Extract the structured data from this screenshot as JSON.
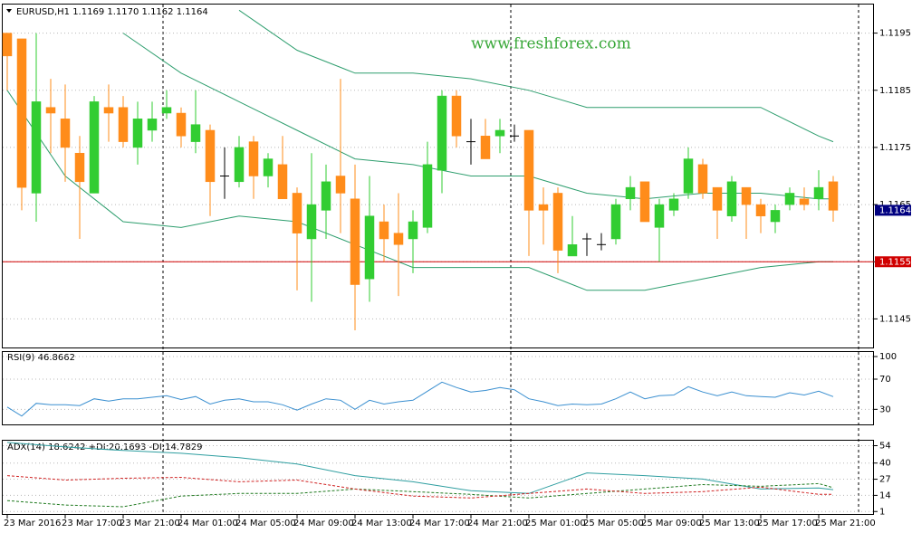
{
  "chart_data": [
    {
      "type": "candlestick",
      "header": "EURUSD,H1  1.1169 1.1170 1.1162 1.1164",
      "watermark": "www.freshforex.com",
      "categories": [
        "23 Mar 2016",
        null,
        null,
        null,
        "23 Mar 17:00",
        null,
        null,
        null,
        "23 Mar 21:00",
        null,
        null,
        null,
        "24 Mar 01:00",
        null,
        null,
        null,
        "24 Mar 05:00",
        null,
        null,
        null,
        "24 Mar 09:00",
        null,
        null,
        null,
        "24 Mar 13:00",
        null,
        null,
        null,
        "24 Mar 17:00",
        null,
        null,
        null,
        "24 Mar 21:00",
        null,
        null,
        null,
        "25 Mar 01:00",
        null,
        null,
        null,
        "25 Mar 05:00",
        null,
        null,
        null,
        "25 Mar 09:00",
        null,
        null,
        null,
        "25 Mar 13:00",
        null,
        null,
        null,
        "25 Mar 17:00",
        null,
        null,
        null,
        "25 Mar 21:00",
        null
      ],
      "ohlc": [
        [
          1.1195,
          1.1195,
          1.1185,
          1.1191
        ],
        [
          1.1194,
          1.1194,
          1.1164,
          1.1168
        ],
        [
          1.1167,
          1.1195,
          1.1162,
          1.1183
        ],
        [
          1.1182,
          1.1187,
          1.1174,
          1.1181
        ],
        [
          1.118,
          1.1186,
          1.1169,
          1.1175
        ],
        [
          1.1174,
          1.1177,
          1.1159,
          1.1169
        ],
        [
          1.1167,
          1.1184,
          1.1167,
          1.1183
        ],
        [
          1.1182,
          1.1186,
          1.1176,
          1.1181
        ],
        [
          1.1182,
          1.1184,
          1.1175,
          1.1176
        ],
        [
          1.1175,
          1.1183,
          1.1172,
          1.118
        ],
        [
          1.1178,
          1.1183,
          1.1176,
          1.118
        ],
        [
          1.1181,
          1.1185,
          1.118,
          1.1182
        ],
        [
          1.1181,
          1.1182,
          1.1175,
          1.1177
        ],
        [
          1.1176,
          1.1185,
          1.1174,
          1.1179
        ],
        [
          1.1178,
          1.1179,
          1.1163,
          1.1169
        ],
        [
          1.117,
          1.1175,
          1.1166,
          1.117
        ],
        [
          1.1169,
          1.1177,
          1.1168,
          1.1175
        ],
        [
          1.1176,
          1.1177,
          1.1166,
          1.117
        ],
        [
          1.117,
          1.1174,
          1.1168,
          1.1173
        ],
        [
          1.1172,
          1.1177,
          1.1166,
          1.1166
        ],
        [
          1.1167,
          1.1168,
          1.115,
          1.116
        ],
        [
          1.1159,
          1.1174,
          1.1148,
          1.1165
        ],
        [
          1.1164,
          1.1172,
          1.1159,
          1.1169
        ],
        [
          1.117,
          1.1187,
          1.116,
          1.1167
        ],
        [
          1.1166,
          1.1172,
          1.1143,
          1.1151
        ],
        [
          1.1152,
          1.117,
          1.1148,
          1.1163
        ],
        [
          1.1162,
          1.1165,
          1.1155,
          1.1159
        ],
        [
          1.116,
          1.1167,
          1.1149,
          1.1158
        ],
        [
          1.1159,
          1.1164,
          1.1153,
          1.1162
        ],
        [
          1.1161,
          1.1176,
          1.116,
          1.1172
        ],
        [
          1.1171,
          1.1185,
          1.1167,
          1.1184
        ],
        [
          1.1184,
          1.1185,
          1.1175,
          1.1177
        ],
        [
          1.1176,
          1.118,
          1.1172,
          1.1176
        ],
        [
          1.1177,
          1.118,
          1.1173,
          1.1173
        ],
        [
          1.1177,
          1.118,
          1.1174,
          1.1178
        ],
        [
          1.1177,
          1.1179,
          1.1176,
          1.1177
        ],
        [
          1.1178,
          1.1178,
          1.1156,
          1.1164
        ],
        [
          1.1165,
          1.1168,
          1.1158,
          1.1164
        ],
        [
          1.1167,
          1.1168,
          1.1153,
          1.1157
        ],
        [
          1.1156,
          1.1163,
          1.1156,
          1.1158
        ],
        [
          1.1159,
          1.116,
          1.1156,
          1.1159
        ],
        [
          1.1158,
          1.116,
          1.1157,
          1.1158
        ],
        [
          1.1159,
          1.1166,
          1.1158,
          1.1165
        ],
        [
          1.1166,
          1.117,
          1.1164,
          1.1168
        ],
        [
          1.1169,
          1.1169,
          1.1162,
          1.1162
        ],
        [
          1.1161,
          1.1166,
          1.1155,
          1.1165
        ],
        [
          1.1164,
          1.1167,
          1.1163,
          1.1166
        ],
        [
          1.1167,
          1.1175,
          1.1166,
          1.1173
        ],
        [
          1.1172,
          1.1173,
          1.1166,
          1.1167
        ],
        [
          1.1168,
          1.1168,
          1.1159,
          1.1164
        ],
        [
          1.1163,
          1.117,
          1.1162,
          1.1169
        ],
        [
          1.1168,
          1.1168,
          1.1159,
          1.1165
        ],
        [
          1.1165,
          1.1166,
          1.116,
          1.1163
        ],
        [
          1.1162,
          1.1165,
          1.116,
          1.1164
        ],
        [
          1.1165,
          1.1168,
          1.1164,
          1.1167
        ],
        [
          1.1166,
          1.1168,
          1.1164,
          1.1165
        ],
        [
          1.1166,
          1.1171,
          1.1164,
          1.1168
        ],
        [
          1.1169,
          1.117,
          1.1162,
          1.1164
        ]
      ],
      "up_color": "#32cd32",
      "down_color": "#ff8c1a",
      "doji_color": "#000000",
      "bands": {
        "color": "#2e9e6e",
        "x": [
          0,
          4,
          8,
          12,
          16,
          20,
          24,
          28,
          32,
          36,
          40,
          44,
          48,
          52,
          56,
          57
        ],
        "upper": [
          null,
          null,
          null,
          null,
          1.1199,
          1.1192,
          1.1188,
          1.1188,
          1.1187,
          1.1185,
          1.1182,
          1.1182,
          1.1182,
          1.1182,
          1.1177,
          1.1176
        ],
        "middle": [
          null,
          null,
          1.1195,
          1.1188,
          1.1183,
          1.1178,
          1.1173,
          1.1172,
          1.117,
          1.117,
          1.1167,
          1.1166,
          1.1167,
          1.1167,
          1.1166,
          1.1166
        ],
        "lower": [
          1.1185,
          1.117,
          1.1162,
          1.1161,
          1.1163,
          1.1162,
          1.1158,
          1.1154,
          1.1154,
          1.1154,
          1.115,
          1.115,
          1.1152,
          1.1154,
          1.1155,
          1.1155
        ]
      },
      "hline": {
        "value": 1.1155,
        "color": "#d00000"
      },
      "current_color": "#000080",
      "ylim": [
        1.114,
        1.12
      ],
      "yticks": [
        1.1145,
        1.1155,
        1.1165,
        1.1175,
        1.1185,
        1.1195
      ],
      "grid": true
    },
    {
      "type": "line",
      "title": "RSI(9) 46.8662",
      "series": [
        {
          "color": "#3a8fd0",
          "dash": false,
          "values": [
            33,
            21,
            38,
            36,
            36,
            35,
            44,
            41,
            44,
            44,
            46,
            48,
            43,
            47,
            37,
            42,
            44,
            40,
            40,
            36,
            29,
            37,
            44,
            42,
            30,
            42,
            37,
            40,
            42,
            54,
            66,
            59,
            53,
            55,
            59,
            56,
            44,
            40,
            35,
            37,
            36,
            37,
            44,
            53,
            44,
            48,
            49,
            60,
            53,
            48,
            53,
            48,
            47,
            46,
            52,
            49,
            54,
            46.8662
          ]
        }
      ],
      "ylim": [
        10,
        106
      ],
      "yticks": [
        30,
        70,
        100
      ],
      "grid": true
    },
    {
      "type": "line",
      "title": "ADX(14) 18.6242 +DI:20.1693 -DI:14.7829",
      "x": [
        0,
        4,
        8,
        12,
        16,
        20,
        24,
        28,
        32,
        36,
        40,
        44,
        48,
        52,
        56,
        57
      ],
      "series": [
        {
          "color": "#2e9ea0",
          "dash": false,
          "values": [
            56.6,
            53.0,
            50.1,
            47.9,
            44.3,
            39.3,
            29.9,
            24.9,
            17.7,
            15.5,
            32.1,
            29.9,
            27.1,
            19.1,
            19.9,
            18.6242
          ]
        },
        {
          "color": "#1f7a1f",
          "dash": true,
          "values": [
            9.8,
            6.2,
            4.8,
            13.4,
            15.5,
            15.5,
            19.1,
            17.0,
            14.8,
            11.9,
            15.5,
            19.1,
            22.7,
            21.3,
            23.5,
            20.1693
          ]
        },
        {
          "color": "#d02020",
          "dash": true,
          "values": [
            29.9,
            26.3,
            27.8,
            28.5,
            24.9,
            26.3,
            19.1,
            13.4,
            11.9,
            15.5,
            19.1,
            15.5,
            17.0,
            20.6,
            14.8,
            14.7829
          ]
        }
      ],
      "ylim": [
        -1,
        58
      ],
      "yticks": [
        1,
        14,
        27,
        40,
        54
      ],
      "grid": true
    }
  ]
}
